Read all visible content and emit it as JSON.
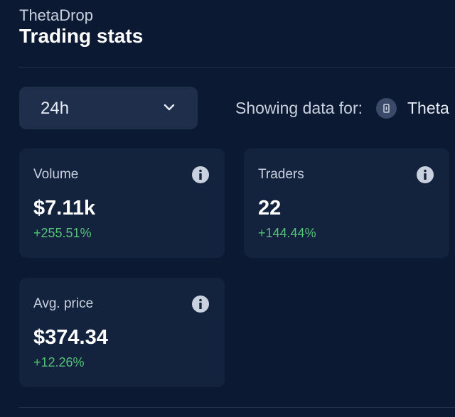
{
  "header": {
    "brand": "ThetaDrop",
    "title": "Trading stats"
  },
  "filter": {
    "period": "24h",
    "showing_label": "Showing data for:",
    "token": "Theta"
  },
  "cards": [
    {
      "name": "Volume",
      "value": "$7.11k",
      "change": "+255.51%"
    },
    {
      "name": "Traders",
      "value": "22",
      "change": "+144.44%"
    },
    {
      "name": "Avg. price",
      "value": "$374.34",
      "change": "+12.26%"
    }
  ]
}
